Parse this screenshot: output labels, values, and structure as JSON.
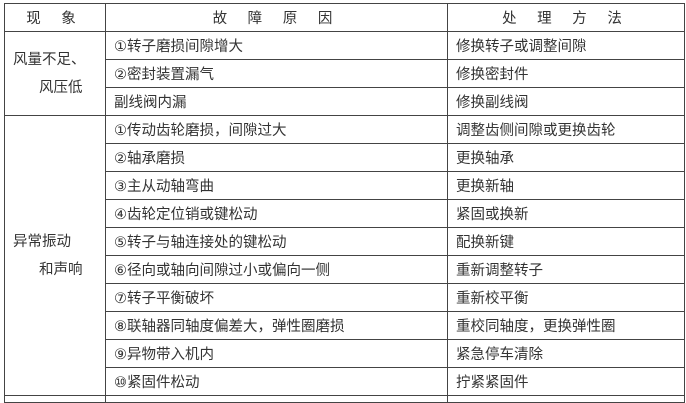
{
  "headers": [
    "现 象",
    "故 障 原 因",
    "处 理 方 法"
  ],
  "groups": [
    {
      "symptom": [
        "风量不足、",
        "风压低"
      ],
      "rows": [
        {
          "cause": "①转子磨损间隙增大",
          "remedy": "修换转子或调整间隙"
        },
        {
          "cause": "②密封装置漏气",
          "remedy": "修换密封件"
        },
        {
          "cause": "副线阀内漏",
          "remedy": "修换副线阀"
        }
      ]
    },
    {
      "symptom": [
        "异常振动",
        "和声响"
      ],
      "rows": [
        {
          "cause": "①传动齿轮磨损，间隙过大",
          "remedy": "调整齿侧间隙或更换齿轮"
        },
        {
          "cause": "②轴承磨损",
          "remedy": "更换轴承"
        },
        {
          "cause": "③主从动轴弯曲",
          "remedy": "更换新轴"
        },
        {
          "cause": "④齿轮定位销或键松动",
          "remedy": "紧固或换新"
        },
        {
          "cause": "⑤转子与轴连接处的键松动",
          "remedy": "配换新键"
        },
        {
          "cause": "⑥径向或轴向间隙过小或偏向一侧",
          "remedy": "重新调整转子"
        },
        {
          "cause": "⑦转子平衡破坏",
          "remedy": "重新校平衡"
        },
        {
          "cause": "⑧联轴器同轴度偏差大，弹性圈磨损",
          "remedy": "重校同轴度，更换弹性圈"
        },
        {
          "cause": "⑨异物带入机内",
          "remedy": "紧急停车清除"
        },
        {
          "cause": "⑩紧固件松动",
          "remedy": "拧紧紧固件"
        }
      ]
    }
  ]
}
